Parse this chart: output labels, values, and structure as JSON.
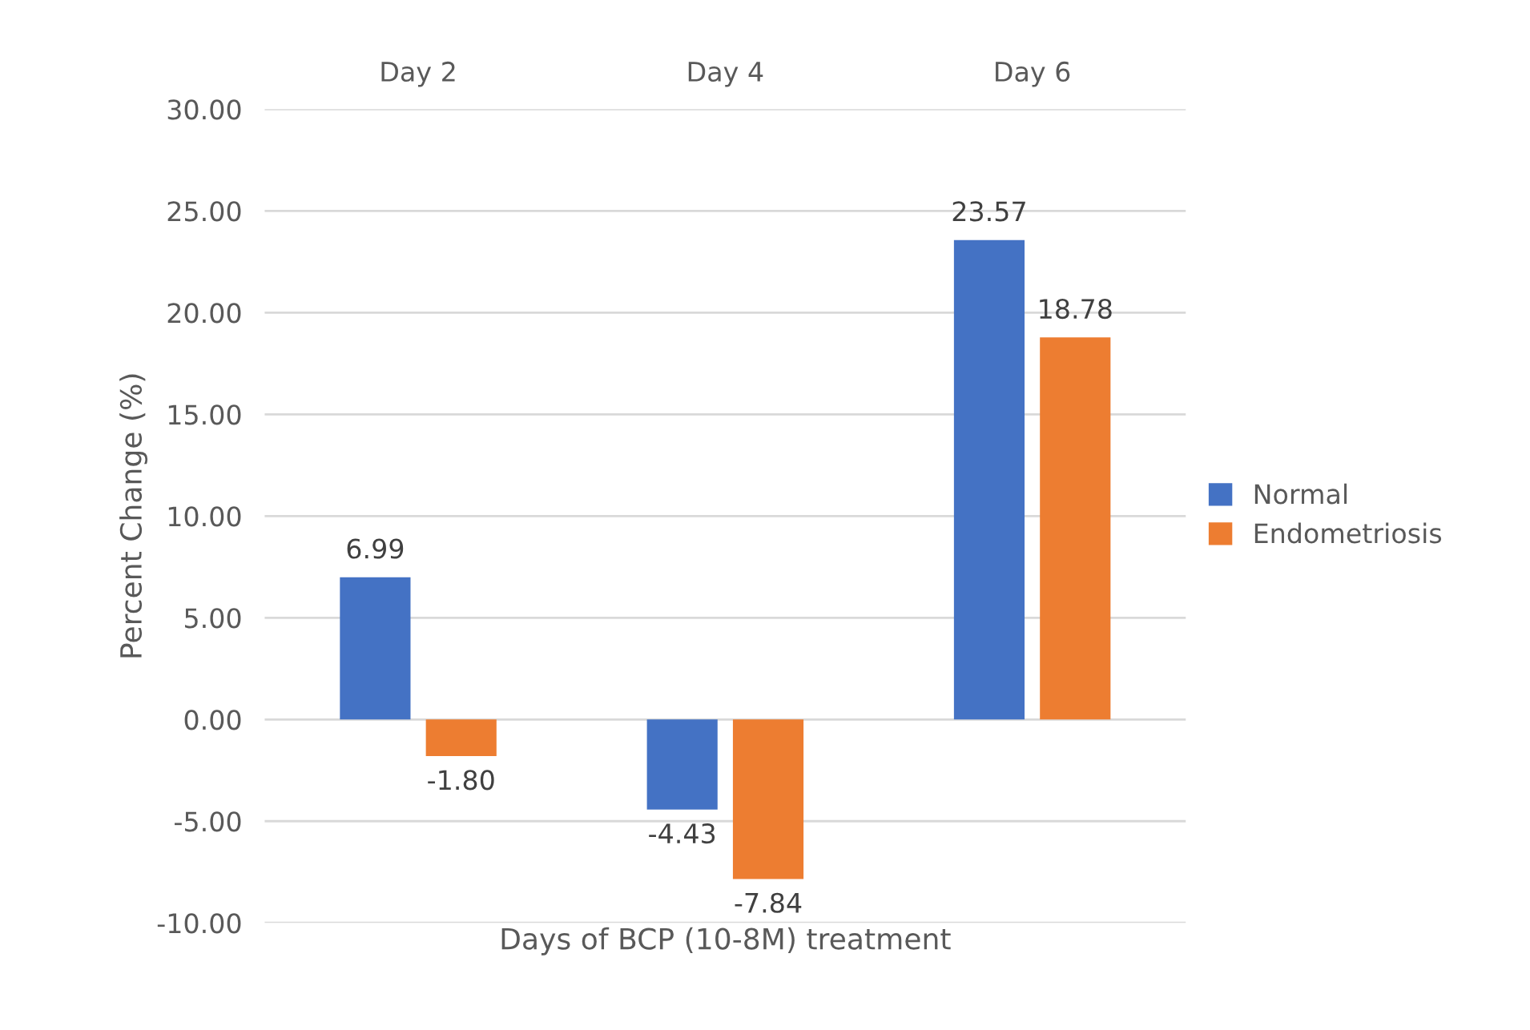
{
  "chart_data": {
    "type": "bar",
    "categories": [
      "Day 2",
      "Day 4",
      "Day 6"
    ],
    "series": [
      {
        "name": "Normal",
        "color": "#4472c4",
        "values": [
          6.99,
          -4.43,
          23.57
        ],
        "value_labels": [
          "6.99",
          "-4.43",
          "23.57"
        ]
      },
      {
        "name": "Endometriosis",
        "color": "#ed7d31",
        "values": [
          -1.8,
          -7.84,
          18.78
        ],
        "value_labels": [
          "-1.80",
          "-7.84",
          "18.78"
        ]
      }
    ],
    "xlabel": "Days of BCP (10-8M) treatment",
    "ylabel": "Percent Change (%)",
    "ylim": [
      -10,
      30
    ],
    "yticks": [
      {
        "value": -10,
        "label": "-10.00"
      },
      {
        "value": -5,
        "label": "-5.00"
      },
      {
        "value": 0,
        "label": "0.00"
      },
      {
        "value": 5,
        "label": "5.00"
      },
      {
        "value": 10,
        "label": "10.00"
      },
      {
        "value": 15,
        "label": "15.00"
      },
      {
        "value": 20,
        "label": "20.00"
      },
      {
        "value": 25,
        "label": "25.00"
      },
      {
        "value": 30,
        "label": "30.00"
      }
    ],
    "grid": "y",
    "legend": "right"
  }
}
